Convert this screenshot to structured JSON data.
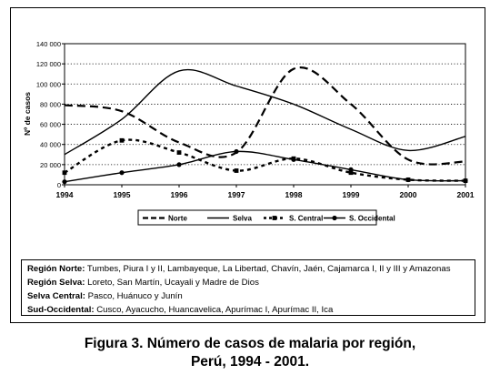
{
  "chart_data": {
    "type": "line",
    "ylabel": "Nº de casos",
    "x": [
      1994,
      1995,
      1996,
      1997,
      1998,
      1999,
      2000,
      2001
    ],
    "x_tick_labels": [
      "1994",
      "1995",
      "1996",
      "1997",
      "1998",
      "1999",
      "2000",
      "2001"
    ],
    "ylim": [
      0,
      140000
    ],
    "y_ticks": [
      0,
      20000,
      40000,
      60000,
      80000,
      100000,
      120000,
      140000
    ],
    "y_tick_labels": [
      "0",
      "20 000",
      "40 000",
      "60 000",
      "80 000",
      "100 000",
      "120 000",
      "140 000"
    ],
    "grid": "horizontal dotted",
    "legend_position": "below plot",
    "series": [
      {
        "name": "Norte",
        "style": "dashed",
        "color": "#000000",
        "values": [
          79000,
          73000,
          42000,
          32000,
          115000,
          80000,
          25000,
          23000
        ]
      },
      {
        "name": "Selva",
        "style": "solid",
        "color": "#000000",
        "values": [
          30000,
          65000,
          113000,
          98000,
          80000,
          55000,
          34000,
          48000
        ]
      },
      {
        "name": "S. Central",
        "style": "dashed-square-markers",
        "color": "#000000",
        "values": [
          12000,
          44000,
          32000,
          14000,
          26000,
          12000,
          5000,
          4000
        ]
      },
      {
        "name": "S. Occidental",
        "style": "solid-circle-markers",
        "color": "#000000",
        "values": [
          3000,
          12000,
          20000,
          33000,
          25000,
          15000,
          5000,
          4000
        ]
      }
    ]
  },
  "region_notes": [
    {
      "label": "Región Norte:",
      "text": " Tumbes, Piura I y II, Lambayeque, La Libertad, Chavín, Jaén, Cajamarca I, II y III y Amazonas"
    },
    {
      "label": "Región Selva:",
      "text": " Loreto, San Martín, Ucayali y Madre de Dios"
    },
    {
      "label": "Selva Central:",
      "text": " Pasco, Huánuco y Junín"
    },
    {
      "label": "Sud-Occidental:",
      "text": " Cusco, Ayacucho, Huancavelica, Apurímac I, Apurímac II, Ica"
    }
  ],
  "caption": {
    "line1": "Figura 3. Número de casos de malaria por región,",
    "line2": "Perú, 1994 - 2001."
  }
}
